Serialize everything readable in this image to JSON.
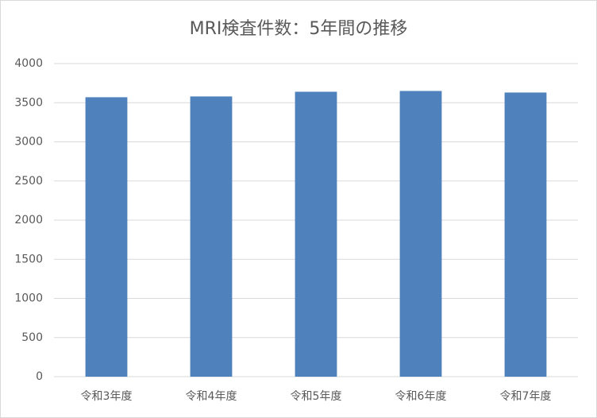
{
  "chart_data": {
    "type": "bar",
    "title": "MRI検査件数：5年間の推移",
    "categories": [
      "令和3年度",
      "令和4年度",
      "令和5年度",
      "令和6年度",
      "令和7年度"
    ],
    "values": [
      3570,
      3580,
      3640,
      3650,
      3630
    ],
    "color": "#4f81bd",
    "ylim": [
      0,
      4000
    ],
    "yticks": [
      0,
      500,
      1000,
      1500,
      2000,
      2500,
      3000,
      3500,
      4000
    ],
    "grid": true
  }
}
